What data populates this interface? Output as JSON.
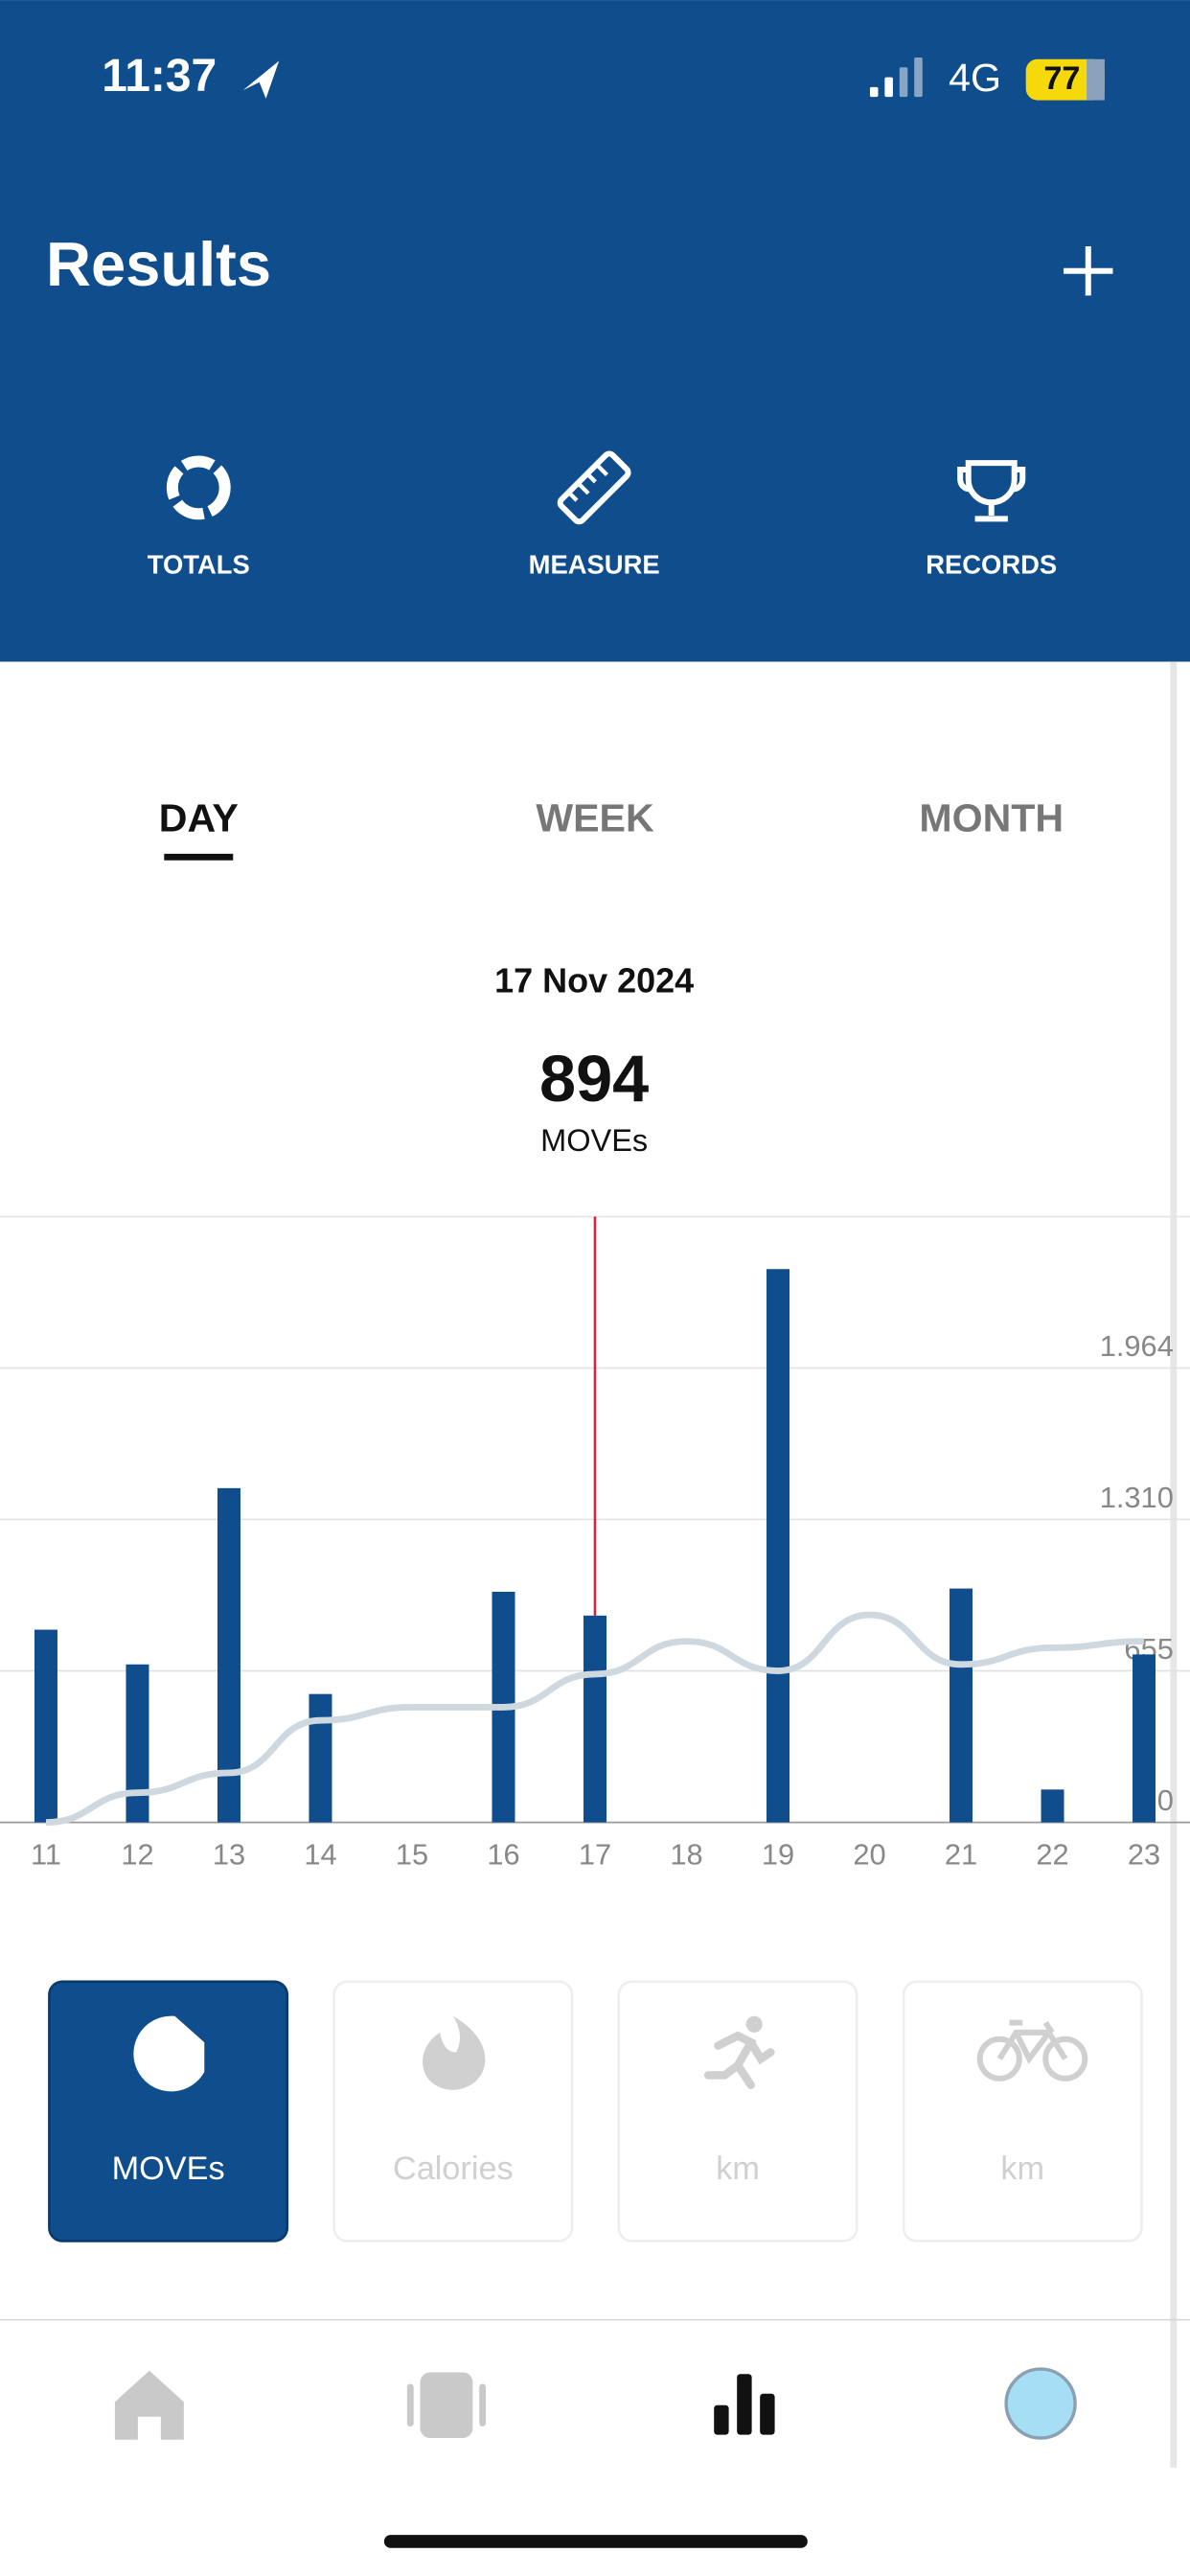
{
  "status_bar": {
    "time": "11:37",
    "network": "4G",
    "battery": "77"
  },
  "header": {
    "title": "Results",
    "tabs": [
      "TOTALS",
      "MEASURE",
      "RECORDS"
    ]
  },
  "periods": {
    "items": [
      "DAY",
      "WEEK",
      "MONTH"
    ],
    "selected": "DAY"
  },
  "summary": {
    "date": "17 Nov 2024",
    "value": "894",
    "unit": "MOVEs"
  },
  "chart_data": {
    "type": "bar",
    "categories": [
      "11",
      "12",
      "13",
      "14",
      "15",
      "16",
      "17",
      "18",
      "19",
      "20",
      "21",
      "22",
      "23"
    ],
    "values": [
      833,
      683,
      1445,
      555,
      0,
      997,
      894,
      0,
      2392,
      0,
      1011,
      142,
      726
    ],
    "color": "#0f4d8c",
    "trend": [
      0,
      128,
      214,
      441,
      498,
      498,
      641,
      783,
      655,
      897,
      683,
      755,
      783
    ],
    "trend_color": "#cfd8de",
    "highlight": "17",
    "highlight_color": "#d0223a",
    "ylim": [
      0,
      2619
    ],
    "yticks": [
      0,
      655,
      {
        "value": 1310,
        "label": "1.310"
      },
      {
        "value": 1964,
        "label": "1.964"
      }
    ],
    "grid": true
  },
  "metrics": {
    "items": [
      "MOVEs",
      "Calories",
      "km",
      "km"
    ],
    "selected": "MOVEs"
  }
}
